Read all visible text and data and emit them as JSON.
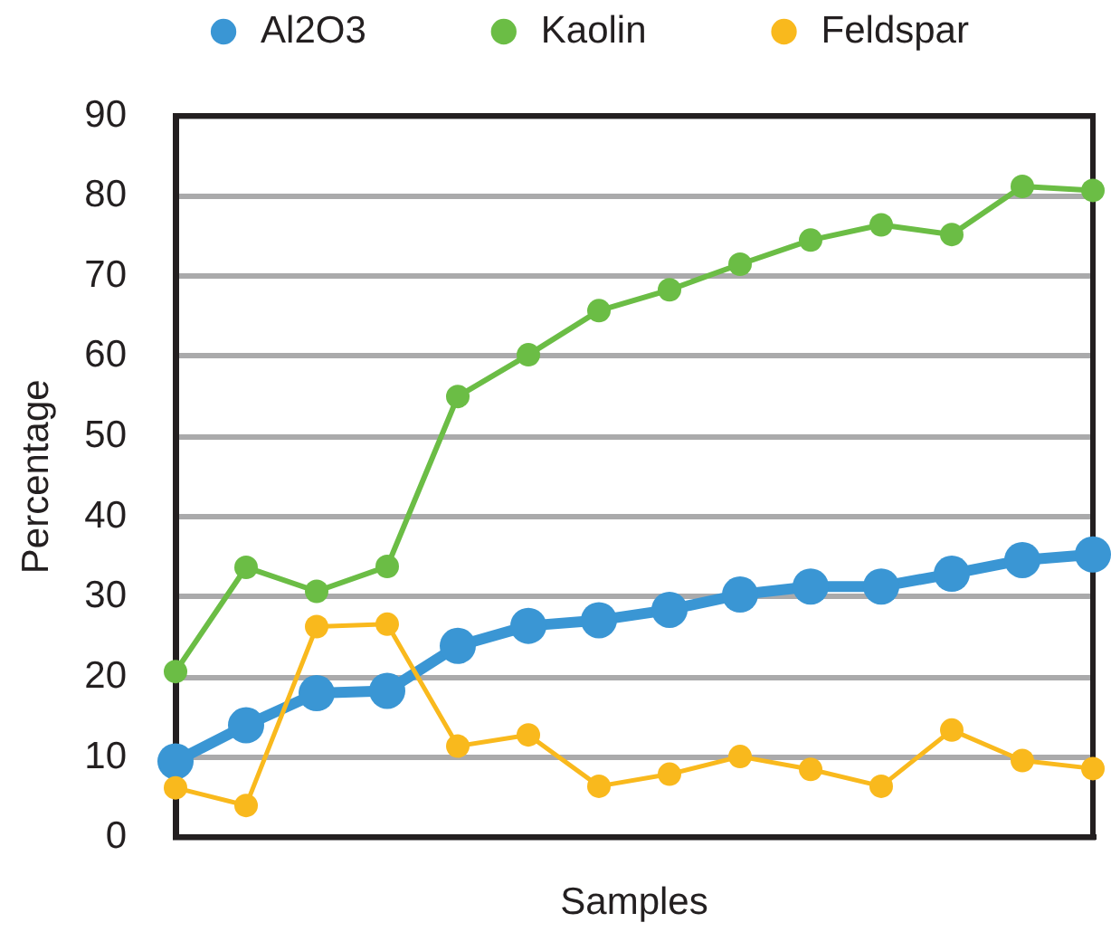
{
  "chart_data": {
    "type": "line",
    "xlabel": "Samples",
    "ylabel": "Percentage",
    "categories": [
      null,
      null,
      null,
      null,
      null,
      null,
      null,
      null,
      null,
      null,
      null,
      null,
      null,
      null
    ],
    "series": [
      {
        "name": "Al2O3",
        "color": "#3a96d4",
        "values": [
          9.5,
          14,
          18,
          18.3,
          23.9,
          26.4,
          27.1,
          28.4,
          30.3,
          31.3,
          31.3,
          32.9,
          34.6,
          35.3
        ]
      },
      {
        "name": "Kaolin",
        "color": "#6bbd45",
        "values": [
          20.7,
          33.7,
          30.7,
          33.8,
          55,
          60.2,
          65.7,
          68.3,
          71.5,
          74.5,
          76.4,
          75.2,
          81.2,
          80.7
        ]
      },
      {
        "name": "Feldspar",
        "color": "#f9b91d",
        "values": [
          6.2,
          4,
          26.3,
          26.6,
          11.4,
          12.8,
          6.4,
          7.9,
          10.1,
          8.5,
          6.4,
          13.4,
          9.6,
          8.6
        ]
      }
    ],
    "ylim": [
      0,
      90
    ],
    "yticks": [
      0,
      10,
      20,
      30,
      40,
      50,
      60,
      70,
      80,
      90
    ],
    "grid": "y",
    "legend": "top",
    "tick_labels": "y",
    "marker": "circle",
    "line_style": "solid"
  }
}
